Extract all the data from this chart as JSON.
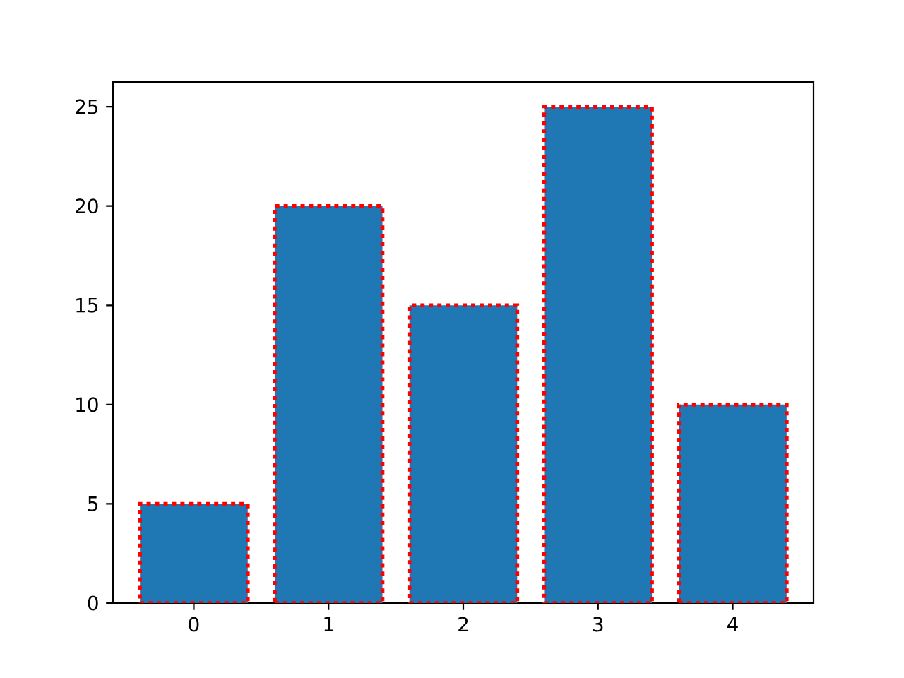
{
  "chart_data": {
    "type": "bar",
    "categories": [
      "0",
      "1",
      "2",
      "3",
      "4"
    ],
    "values": [
      5,
      20,
      15,
      25,
      10
    ],
    "color": "#1f77b4",
    "line_style": "dashed",
    "ylim": [
      0,
      26.25
    ],
    "yticks": [
      0,
      5,
      10,
      15,
      20,
      25
    ]
  }
}
